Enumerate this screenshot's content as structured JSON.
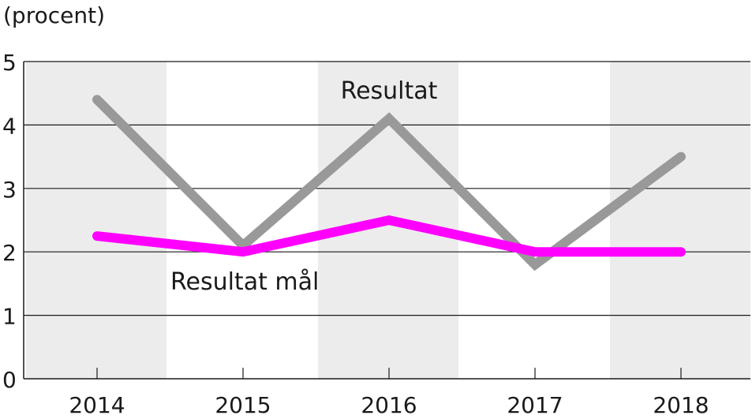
{
  "chart_data": {
    "type": "line",
    "y_unit_label": "(procent)",
    "categories": [
      "2014",
      "2015",
      "2016",
      "2017",
      "2018"
    ],
    "ylim": [
      0,
      5
    ],
    "yticks": [
      "0",
      "1",
      "2",
      "3",
      "4",
      "5"
    ],
    "grid": true,
    "series": [
      {
        "name": "Resultat",
        "values": [
          4.4,
          2.1,
          4.1,
          1.8,
          3.5
        ],
        "color": "#999999"
      },
      {
        "name": "Resultat mål",
        "values": [
          2.25,
          2.0,
          2.5,
          2.0,
          2.0
        ],
        "color": "#ff00ff"
      }
    ],
    "colors": {
      "band": "#ececec",
      "grid": "#1a1a1a",
      "text": "#1a1a1a"
    }
  }
}
